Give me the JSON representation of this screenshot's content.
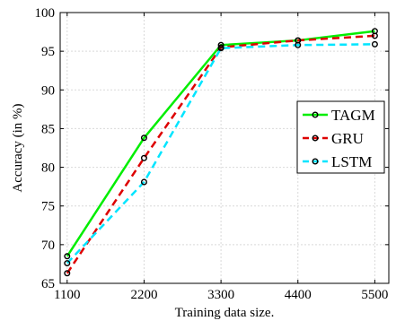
{
  "chart_data": {
    "type": "line",
    "title": "",
    "xlabel": "Training data size.",
    "ylabel": "Accuracy (in %)",
    "x": [
      1100,
      2200,
      3300,
      4400,
      5500
    ],
    "x_tick_labels": [
      "1100",
      "2200",
      "3300",
      "4400",
      "5500"
    ],
    "xlim": [
      1000,
      5700
    ],
    "ylim": [
      65,
      100
    ],
    "y_ticks": [
      65,
      70,
      75,
      80,
      85,
      90,
      95,
      100
    ],
    "y_tick_labels": [
      "65",
      "70",
      "75",
      "80",
      "85",
      "90",
      "95",
      "100"
    ],
    "grid": true,
    "legend_position": "right-middle",
    "series": [
      {
        "name": "TAGM",
        "values": [
          68.5,
          83.8,
          95.8,
          96.4,
          97.6
        ],
        "color": "#00ee00",
        "dash": "solid"
      },
      {
        "name": "GRU",
        "values": [
          66.3,
          81.2,
          95.5,
          96.4,
          97.0
        ],
        "color": "#dd0000",
        "dash": "dashed"
      },
      {
        "name": "LSTM",
        "values": [
          67.6,
          78.1,
          95.4,
          95.8,
          95.9
        ],
        "color": "#00e5ff",
        "dash": "dashed"
      }
    ]
  }
}
